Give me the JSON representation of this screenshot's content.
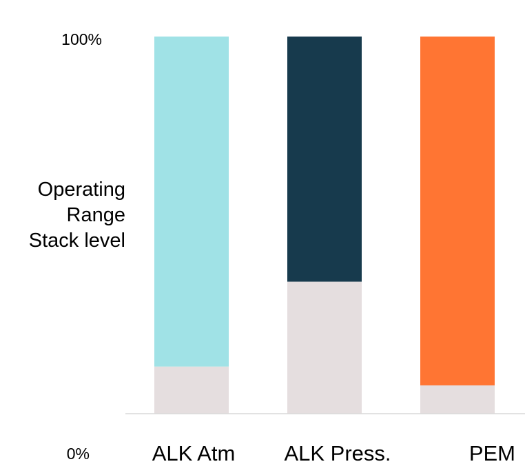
{
  "chart_data": {
    "type": "bar",
    "stacked": true,
    "categories": [
      "ALK Atm",
      "ALK Press.",
      "PEM"
    ],
    "series": [
      {
        "values": [
          12.5,
          35,
          7.5
        ],
        "color": "#E5DEDF"
      },
      {
        "values": [
          87.5,
          65,
          92.5
        ],
        "colors": [
          "#A0E2E6",
          "#173A4D",
          "#FF7533"
        ]
      }
    ],
    "ylabel": [
      "Operating",
      "Range",
      "Stack level"
    ],
    "y_tick_labels": {
      "top": "100%",
      "bottom": "0%"
    },
    "ylim": [
      0,
      100
    ],
    "axis_color": "#D9D9D9",
    "grid": false,
    "legend": "none"
  }
}
